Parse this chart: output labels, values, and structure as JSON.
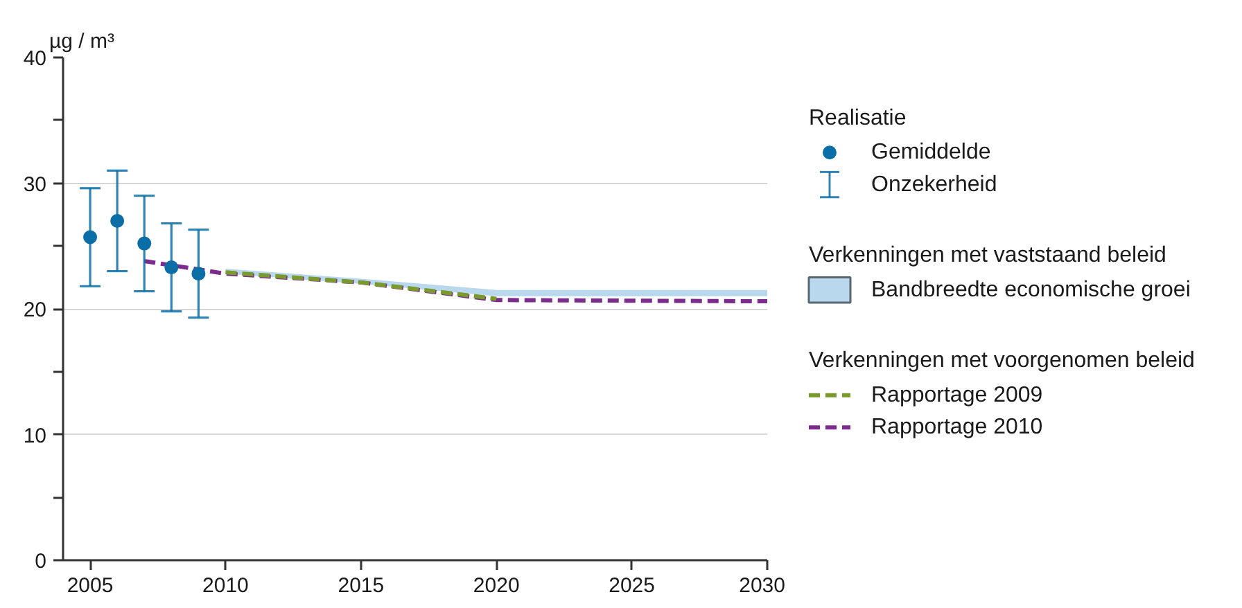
{
  "chart_data": {
    "type": "line",
    "ylabel": "µg / m³",
    "xlim": [
      2004,
      2030
    ],
    "xticks": [
      2005,
      2010,
      2015,
      2020,
      2025,
      2030
    ],
    "ylim": [
      0,
      40
    ],
    "yticks": [
      0,
      {
        "value": 5,
        "label": null
      },
      10,
      {
        "value": 15,
        "label": null
      },
      20,
      {
        "value": 25,
        "label": null
      },
      30,
      {
        "value": 35,
        "label": null
      },
      40
    ],
    "grid": "y",
    "legend": "right",
    "line_style": "dashed",
    "annotations": [
      "Realisatie",
      "Onzekerheid",
      "Verkenningen met vaststaand beleid",
      "Verkenningen met voorgenomen beleid"
    ],
    "series": [
      {
        "name": "Gemiddelde",
        "type": "scatter",
        "marker": "circle",
        "color": "#0b6ea6",
        "x": [
          2005,
          2006,
          2007,
          2008,
          2009
        ],
        "values": [
          25.7,
          27.0,
          25.2,
          23.3,
          22.8
        ],
        "errors": [
          3.9,
          4.0,
          3.8,
          3.5,
          3.5
        ]
      },
      {
        "name": "Bandbreedte economische groei",
        "type": "area",
        "color": "#b9d8ee",
        "x": [
          2010,
          2015,
          2020,
          2030
        ],
        "values": [
          null,
          null,
          null,
          null
        ],
        "lower": [
          22.8,
          22.0,
          21.0,
          21.0
        ],
        "upper": [
          23.2,
          22.4,
          21.5,
          21.5
        ]
      },
      {
        "name": "Rapportage 2009",
        "type": "line",
        "color": "#7a9a2e",
        "x": [
          2010,
          2015,
          2020
        ],
        "values": [
          22.9,
          22.1,
          20.8
        ]
      },
      {
        "name": "Rapportage 2010",
        "color": "#7b2c8c",
        "x": [
          2007,
          2010,
          2015,
          2020,
          2030
        ],
        "values": [
          23.8,
          22.8,
          22.1,
          20.7,
          20.6
        ]
      }
    ]
  }
}
